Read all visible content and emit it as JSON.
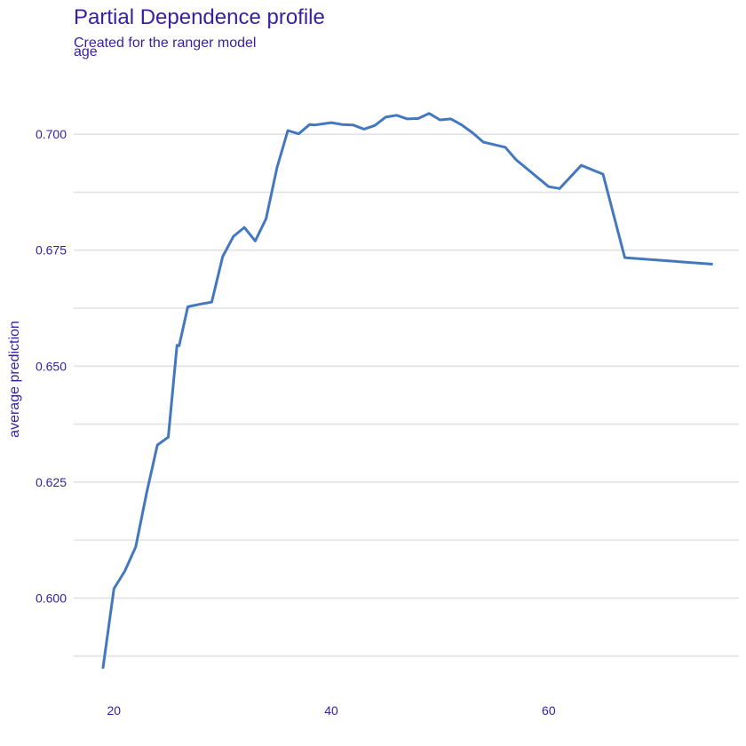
{
  "chart_data": {
    "type": "line",
    "title": "Partial Dependence profile",
    "subtitle": "Created for the ranger model",
    "panel_label": "age",
    "xlabel": "",
    "ylabel": "average prediction",
    "xlim": [
      16.3,
      77.5
    ],
    "ylim": [
      0.5815,
      0.7098
    ],
    "x_ticks": [
      20,
      40,
      60
    ],
    "y_ticks": [
      0.6,
      0.625,
      0.65,
      0.675,
      0.7
    ],
    "y_tick_labels": [
      "0.600",
      "0.625",
      "0.650",
      "0.675",
      "0.700"
    ],
    "x_tick_labels": [
      "20",
      "40",
      "60"
    ],
    "grid": true,
    "legend": "none",
    "series": [
      {
        "color": "#4378bf",
        "x": [
          19,
          20,
          21,
          22,
          23,
          24,
          25,
          25.8,
          26,
          26.8,
          28,
          29,
          30,
          31,
          32,
          33,
          34,
          35,
          36,
          37,
          38,
          38.5,
          40,
          41,
          42,
          43,
          44,
          45,
          46,
          47,
          48,
          49,
          50,
          51,
          52,
          53,
          54,
          56,
          57,
          60,
          61,
          63,
          65,
          67,
          75
        ],
        "y": [
          0.585,
          0.602,
          0.6058,
          0.611,
          0.6226,
          0.633,
          0.6347,
          0.6545,
          0.6544,
          0.6628,
          0.6634,
          0.6638,
          0.6736,
          0.678,
          0.6799,
          0.677,
          0.6818,
          0.6928,
          0.7008,
          0.7001,
          0.7021,
          0.702,
          0.7025,
          0.7021,
          0.702,
          0.7011,
          0.7019,
          0.7037,
          0.7041,
          0.7033,
          0.7034,
          0.7045,
          0.7031,
          0.7033,
          0.702,
          0.7003,
          0.6983,
          0.6972,
          0.6945,
          0.6887,
          0.6883,
          0.6933,
          0.6914,
          0.6734,
          0.672
        ]
      }
    ]
  }
}
